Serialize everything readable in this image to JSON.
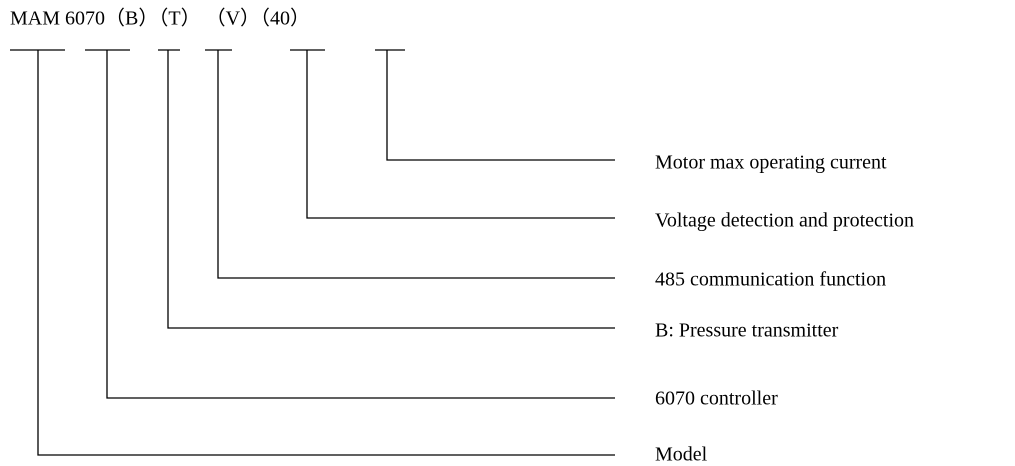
{
  "code": "MAM 6070（B）（T） （V）（40）",
  "labels": [
    "Motor max operating current",
    "Voltage detection and protection",
    "485 communication function",
    "B: Pressure transmitter",
    "6070 controller",
    "Model"
  ]
}
